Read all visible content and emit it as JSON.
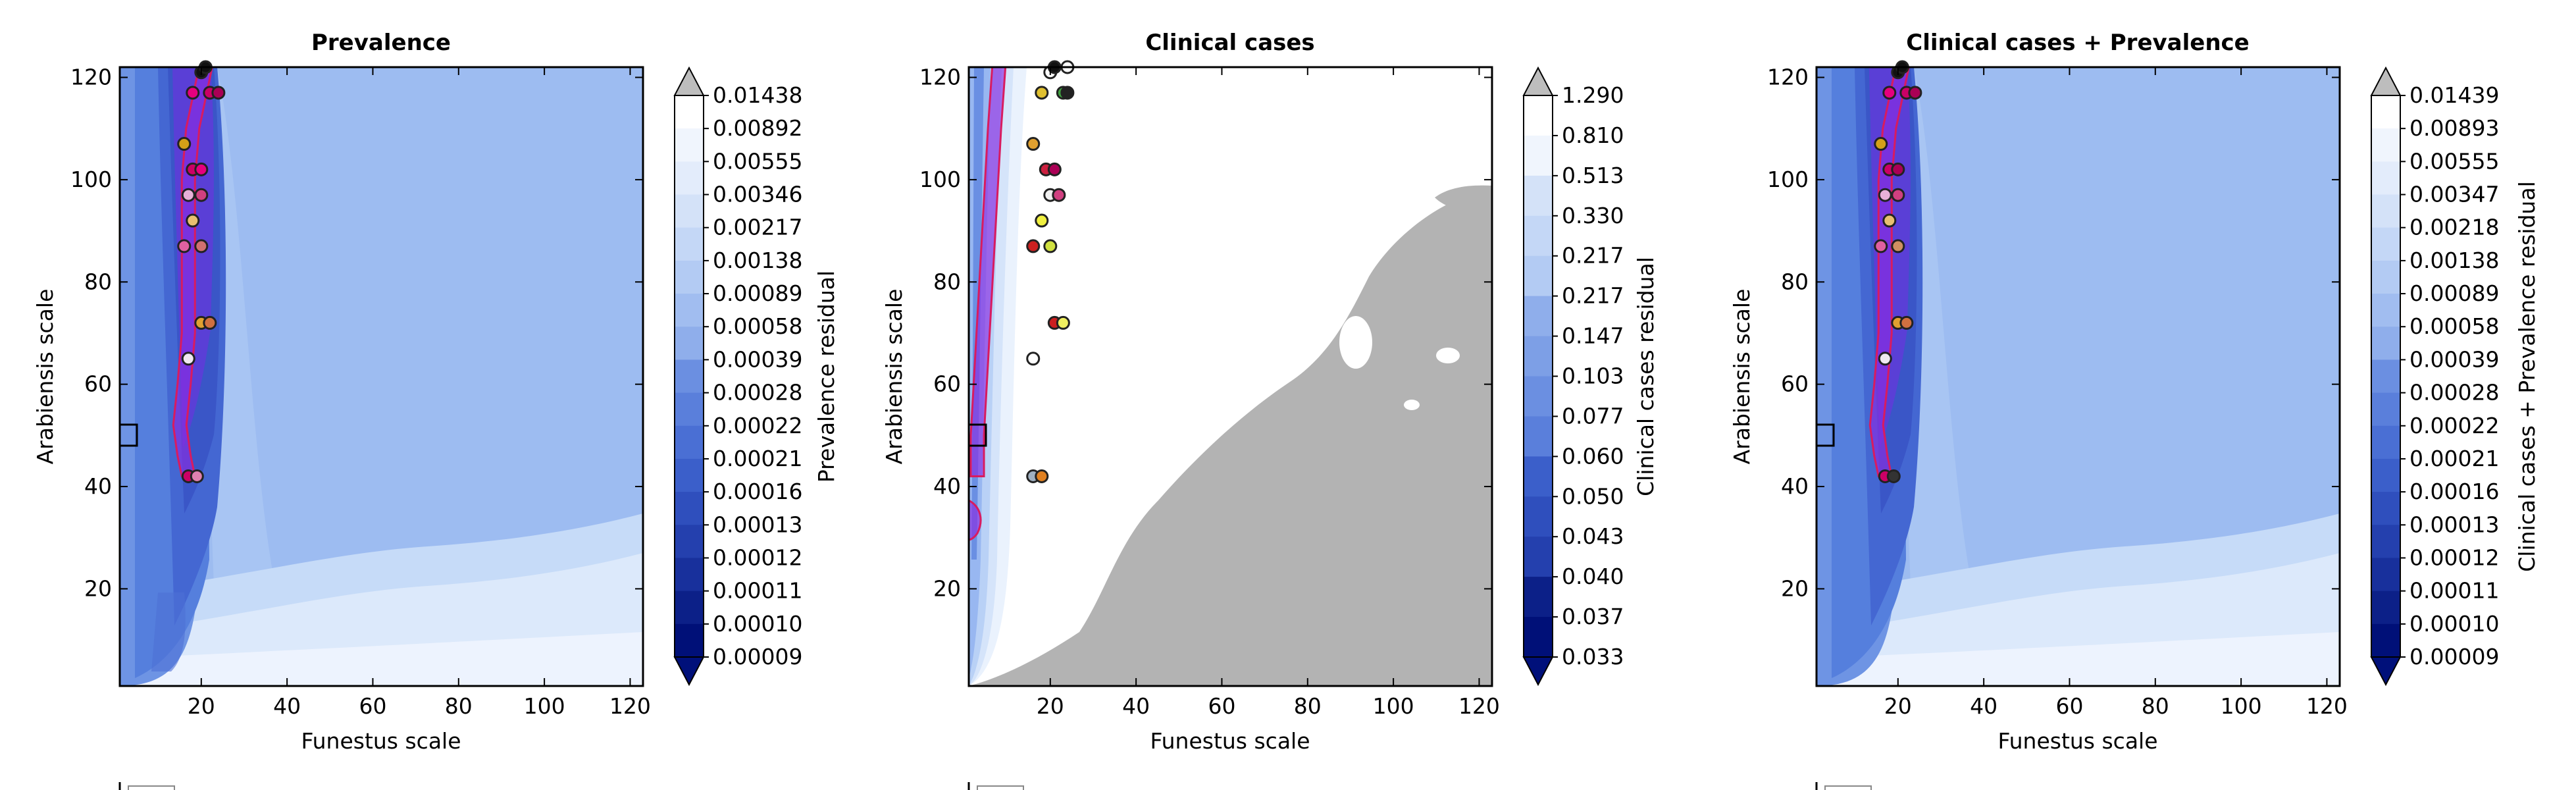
{
  "chart_data": [
    {
      "type": "heatmap",
      "title": "Prevalence",
      "xlabel": "Funestus scale",
      "ylabel": "Arabiensis scale",
      "xlim": [
        1,
        123
      ],
      "ylim": [
        1,
        122
      ],
      "xticks": [
        20,
        40,
        60,
        80,
        100,
        120
      ],
      "yticks": [
        20,
        40,
        60,
        80,
        100,
        120
      ],
      "grid": false,
      "colorbar_label": "Prevalence residual",
      "colorbar_levels": [
        "0.01438",
        "0.00892",
        "0.00555",
        "0.00346",
        "0.00217",
        "0.00138",
        "0.00089",
        "0.00058",
        "0.00039",
        "0.00028",
        "0.00022",
        "0.00021",
        "0.00016",
        "0.00013",
        "0.00012",
        "0.00011",
        "0.00010",
        "0.00009"
      ],
      "ridge": [
        [
          21,
          122
        ],
        [
          20,
          118
        ],
        [
          18,
          110
        ],
        [
          17,
          100
        ],
        [
          17,
          90
        ],
        [
          17,
          80
        ],
        [
          17,
          70
        ],
        [
          16,
          60
        ],
        [
          15,
          52
        ],
        [
          16,
          46
        ],
        [
          17,
          42
        ]
      ],
      "points": [
        {
          "x": 20,
          "y": 121,
          "color": "#111111"
        },
        {
          "x": 21,
          "y": 122,
          "color": "#111111"
        },
        {
          "x": 18,
          "y": 117,
          "color": "#e6007e"
        },
        {
          "x": 22,
          "y": 117,
          "color": "#cc0066"
        },
        {
          "x": 24,
          "y": 117,
          "color": "#aa0055"
        },
        {
          "x": 16,
          "y": 107,
          "color": "#d4a017"
        },
        {
          "x": 18,
          "y": 102,
          "color": "#cc0066"
        },
        {
          "x": 20,
          "y": 102,
          "color": "#e6007e"
        },
        {
          "x": 17,
          "y": 97,
          "color": "#e8b0d8"
        },
        {
          "x": 20,
          "y": 97,
          "color": "#d04080"
        },
        {
          "x": 18,
          "y": 92,
          "color": "#e8c070"
        },
        {
          "x": 16,
          "y": 87,
          "color": "#e060a0"
        },
        {
          "x": 20,
          "y": 87,
          "color": "#d07070"
        },
        {
          "x": 20,
          "y": 72,
          "color": "#e0a030"
        },
        {
          "x": 22,
          "y": 72,
          "color": "#d07040"
        },
        {
          "x": 17,
          "y": 65,
          "color": "#f0e8f0"
        },
        {
          "x": 17,
          "y": 42,
          "color": "#cc0066"
        },
        {
          "x": 19,
          "y": 42,
          "color": "#e080b0"
        }
      ]
    },
    {
      "type": "heatmap",
      "title": "Clinical cases",
      "xlabel": "Funestus scale",
      "ylabel": "Arabiensis scale",
      "xlim": [
        1,
        123
      ],
      "ylim": [
        1,
        122
      ],
      "xticks": [
        20,
        40,
        60,
        80,
        100,
        120
      ],
      "yticks": [
        20,
        40,
        60,
        80,
        100,
        120
      ],
      "grid": false,
      "colorbar_label": "Clinical cases residual",
      "colorbar_levels": [
        "1.290",
        "0.810",
        "0.513",
        "0.330",
        "0.217",
        "0.217",
        "0.147",
        "0.103",
        "0.077",
        "0.060",
        "0.050",
        "0.043",
        "0.040",
        "0.037",
        "0.033"
      ],
      "ridge": [
        [
          8,
          122
        ],
        [
          7,
          110
        ],
        [
          6,
          95
        ],
        [
          5,
          80
        ],
        [
          4,
          65
        ],
        [
          3,
          50
        ],
        [
          3,
          42
        ]
      ],
      "points": [
        {
          "x": 20,
          "y": 121,
          "color": "#ffffff"
        },
        {
          "x": 21,
          "y": 122,
          "color": "#111111"
        },
        {
          "x": 24,
          "y": 122,
          "color": "#ffffff"
        },
        {
          "x": 18,
          "y": 117,
          "color": "#e0c030"
        },
        {
          "x": 23,
          "y": 117,
          "color": "#40a040"
        },
        {
          "x": 24,
          "y": 117,
          "color": "#222222"
        },
        {
          "x": 16,
          "y": 107,
          "color": "#e0a030"
        },
        {
          "x": 19,
          "y": 102,
          "color": "#cc2040"
        },
        {
          "x": 21,
          "y": 102,
          "color": "#aa0055"
        },
        {
          "x": 20,
          "y": 97,
          "color": "#f0f0f0"
        },
        {
          "x": 22,
          "y": 97,
          "color": "#d04080"
        },
        {
          "x": 18,
          "y": 92,
          "color": "#f0f040"
        },
        {
          "x": 16,
          "y": 87,
          "color": "#cc2020"
        },
        {
          "x": 20,
          "y": 87,
          "color": "#d0e040"
        },
        {
          "x": 21,
          "y": 72,
          "color": "#cc2020"
        },
        {
          "x": 23,
          "y": 72,
          "color": "#f0f060"
        },
        {
          "x": 16,
          "y": 65,
          "color": "#ffffff"
        },
        {
          "x": 16,
          "y": 42,
          "color": "#a0b0c0"
        },
        {
          "x": 18,
          "y": 42,
          "color": "#e08020"
        }
      ]
    },
    {
      "type": "heatmap",
      "title": "Clinical cases + Prevalence",
      "xlabel": "Funestus scale",
      "ylabel": "Arabiensis scale",
      "xlim": [
        1,
        123
      ],
      "ylim": [
        1,
        122
      ],
      "xticks": [
        20,
        40,
        60,
        80,
        100,
        120
      ],
      "yticks": [
        20,
        40,
        60,
        80,
        100,
        120
      ],
      "grid": false,
      "colorbar_label": "Clinical cases + Prevalence residual",
      "colorbar_levels": [
        "0.01439",
        "0.00893",
        "0.00555",
        "0.00347",
        "0.00218",
        "0.00138",
        "0.00089",
        "0.00058",
        "0.00039",
        "0.00028",
        "0.00022",
        "0.00021",
        "0.00016",
        "0.00013",
        "0.00012",
        "0.00011",
        "0.00010",
        "0.00009"
      ],
      "ridge": [
        [
          21,
          122
        ],
        [
          20,
          118
        ],
        [
          18,
          110
        ],
        [
          17,
          100
        ],
        [
          17,
          90
        ],
        [
          17,
          80
        ],
        [
          17,
          70
        ],
        [
          16,
          60
        ],
        [
          15,
          52
        ],
        [
          16,
          46
        ],
        [
          17,
          42
        ]
      ],
      "points": [
        {
          "x": 20,
          "y": 121,
          "color": "#111111"
        },
        {
          "x": 21,
          "y": 122,
          "color": "#111111"
        },
        {
          "x": 18,
          "y": 117,
          "color": "#e6007e"
        },
        {
          "x": 22,
          "y": 117,
          "color": "#cc0066"
        },
        {
          "x": 24,
          "y": 117,
          "color": "#aa0055"
        },
        {
          "x": 16,
          "y": 107,
          "color": "#d4a017"
        },
        {
          "x": 18,
          "y": 102,
          "color": "#cc0066"
        },
        {
          "x": 20,
          "y": 102,
          "color": "#aa0055"
        },
        {
          "x": 17,
          "y": 97,
          "color": "#e8b0d8"
        },
        {
          "x": 20,
          "y": 97,
          "color": "#d04080"
        },
        {
          "x": 18,
          "y": 92,
          "color": "#e8c070"
        },
        {
          "x": 16,
          "y": 87,
          "color": "#e060a0"
        },
        {
          "x": 20,
          "y": 87,
          "color": "#d09060"
        },
        {
          "x": 20,
          "y": 72,
          "color": "#e0a030"
        },
        {
          "x": 22,
          "y": 72,
          "color": "#d07040"
        },
        {
          "x": 17,
          "y": 65,
          "color": "#f0e8f0"
        },
        {
          "x": 17,
          "y": 42,
          "color": "#cc0066"
        },
        {
          "x": 19,
          "y": 42,
          "color": "#333333"
        }
      ]
    }
  ]
}
